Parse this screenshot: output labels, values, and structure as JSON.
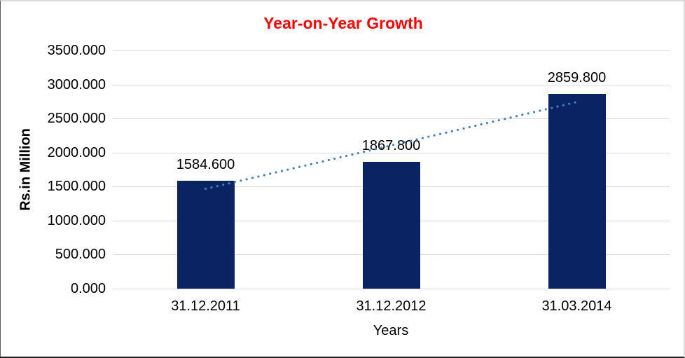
{
  "chart_data": {
    "type": "bar",
    "title": "Year-on-Year Growth",
    "xlabel": "Years",
    "ylabel": "Rs.in Million",
    "categories": [
      "31.12.2011",
      "31.12.2012",
      "31.03.2014"
    ],
    "values": [
      1584.6,
      1867.8,
      2859.8
    ],
    "value_labels": [
      "1584.600",
      "1867.800",
      "2859.800"
    ],
    "ylim": [
      0,
      3500
    ],
    "ytick_step": 500,
    "ytick_labels": [
      "0.000",
      "500.000",
      "1000.000",
      "1500.000",
      "2000.000",
      "2500.000",
      "3000.000",
      "3500.000"
    ],
    "grid": true,
    "legend": false,
    "trendline": {
      "type": "linear",
      "style": "dotted"
    },
    "colors": {
      "bar": "#0A2463",
      "trend": "#4A7EBB",
      "title": "#FF0000",
      "grid": "#D9D9D9",
      "text": "#000000"
    }
  }
}
